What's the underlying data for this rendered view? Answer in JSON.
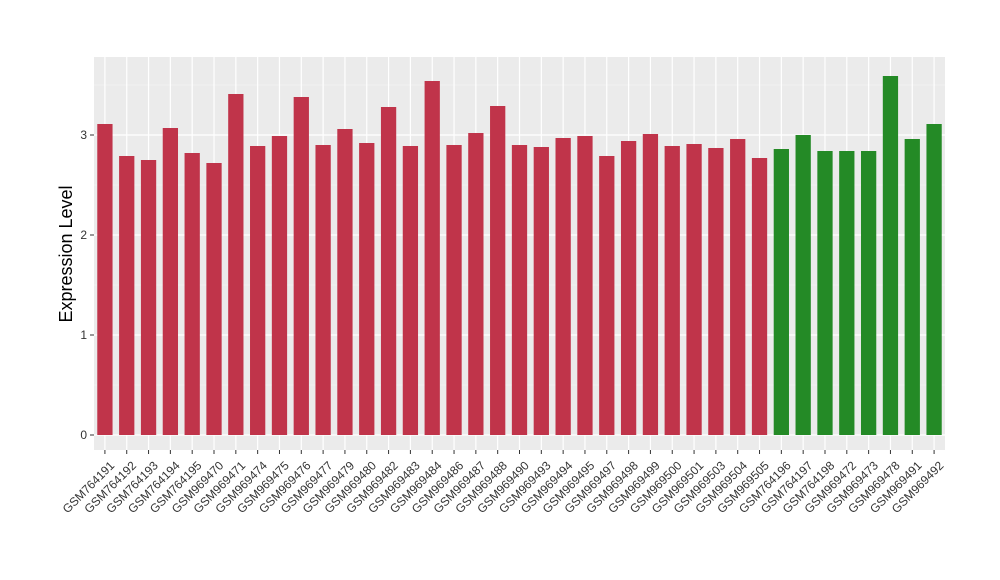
{
  "colors": {
    "panel_background": "#EBEBEB",
    "grid_major": "#FFFFFF",
    "group_a": "#C0344A",
    "group_b": "#248A26"
  },
  "chart_data": {
    "type": "bar",
    "title": "",
    "xlabel": "",
    "ylabel": "Expression Level",
    "ylim": [
      -0.15,
      3.78
    ],
    "yticks": [
      0,
      1,
      2,
      3
    ],
    "grid": true,
    "legend": "none",
    "categories": [
      "GSM764191",
      "GSM764192",
      "GSM764193",
      "GSM764194",
      "GSM764195",
      "GSM969470",
      "GSM969471",
      "GSM969474",
      "GSM969475",
      "GSM969476",
      "GSM969477",
      "GSM969479",
      "GSM969480",
      "GSM969482",
      "GSM969483",
      "GSM969484",
      "GSM969486",
      "GSM969487",
      "GSM969488",
      "GSM969490",
      "GSM969493",
      "GSM969494",
      "GSM969495",
      "GSM969497",
      "GSM969498",
      "GSM969499",
      "GSM969500",
      "GSM969501",
      "GSM969503",
      "GSM969504",
      "GSM969505",
      "GSM764196",
      "GSM764197",
      "GSM764198",
      "GSM969472",
      "GSM969473",
      "GSM969478",
      "GSM969491",
      "GSM969492"
    ],
    "values": [
      3.11,
      2.79,
      2.75,
      3.07,
      2.82,
      2.72,
      3.41,
      2.89,
      2.99,
      3.38,
      2.9,
      3.06,
      2.92,
      3.28,
      2.89,
      3.54,
      2.9,
      3.02,
      3.29,
      2.9,
      2.88,
      2.97,
      2.99,
      2.79,
      2.94,
      3.01,
      2.89,
      2.91,
      2.87,
      2.96,
      2.77,
      2.86,
      3.0,
      2.84,
      2.84,
      2.84,
      3.59,
      2.96,
      3.11
    ],
    "bar_groups": [
      "a",
      "a",
      "a",
      "a",
      "a",
      "a",
      "a",
      "a",
      "a",
      "a",
      "a",
      "a",
      "a",
      "a",
      "a",
      "a",
      "a",
      "a",
      "a",
      "a",
      "a",
      "a",
      "a",
      "a",
      "a",
      "a",
      "a",
      "a",
      "a",
      "a",
      "a",
      "b",
      "b",
      "b",
      "b",
      "b",
      "b",
      "b",
      "b"
    ]
  }
}
